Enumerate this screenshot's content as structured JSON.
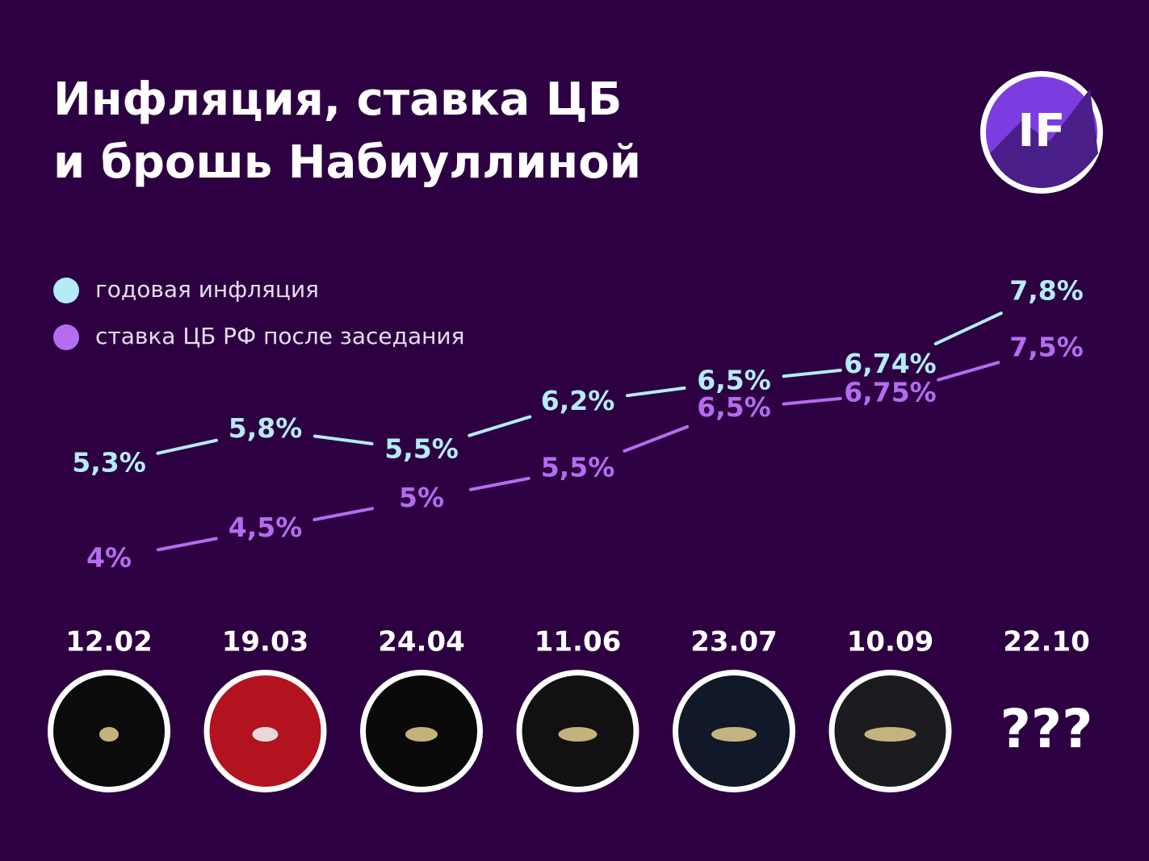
{
  "chart_data": {
    "type": "line",
    "title": [
      "Инфляция, ставка ЦБ",
      "и брошь Набиуллиной"
    ],
    "logo": "IF",
    "categories": [
      "12.02",
      "19.03",
      "24.04",
      "11.06",
      "23.07",
      "10.09",
      "22.10"
    ],
    "series": [
      {
        "name": "годовая инфляция",
        "color": "#b4ebf7",
        "values": [
          5.3,
          5.8,
          5.5,
          6.2,
          6.5,
          6.74,
          7.8
        ],
        "value_labels": [
          "5,3%",
          "5,8%",
          "5,5%",
          "6,2%",
          "6,5%",
          "6,74%",
          "7,8%"
        ]
      },
      {
        "name": "ставка ЦБ РФ после заседания",
        "color": "#b56cf0",
        "values": [
          4,
          4.5,
          5,
          5.5,
          6.5,
          6.75,
          7.5
        ],
        "value_labels": [
          "4%",
          "4,5%",
          "5%",
          "5,5%",
          "6,5%",
          "6,75%",
          "7,5%"
        ]
      }
    ],
    "placeholder": "???"
  }
}
